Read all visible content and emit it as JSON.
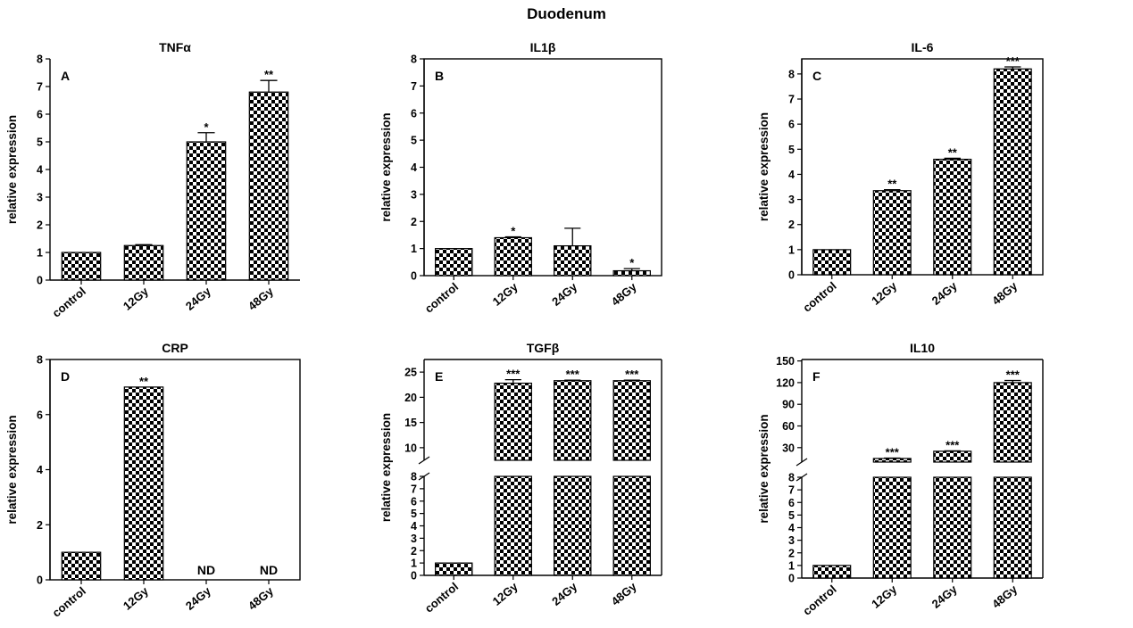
{
  "figure_title": "Duodenum",
  "chart_data": [
    {
      "panel": "A",
      "type": "bar",
      "title": "TNFα",
      "ylabel": "relative expression",
      "categories": [
        "control",
        "12Gy",
        "24Gy",
        "48Gy"
      ],
      "values": [
        1.0,
        1.25,
        5.0,
        6.8
      ],
      "errors": [
        0.0,
        0.03,
        0.33,
        0.42
      ],
      "significance": [
        "",
        "",
        "*",
        "**"
      ],
      "ylim": [
        0,
        8
      ],
      "yticks": [
        0,
        1,
        2,
        3,
        4,
        5,
        6,
        7,
        8
      ],
      "frame": "left"
    },
    {
      "panel": "B",
      "type": "bar",
      "title": "IL1β",
      "ylabel": "relative expression",
      "categories": [
        "control",
        "12Gy",
        "24Gy",
        "48Gy"
      ],
      "values": [
        1.0,
        1.4,
        1.1,
        0.18
      ],
      "errors": [
        0.0,
        0.03,
        0.65,
        0.08
      ],
      "significance": [
        "",
        "*",
        "",
        "*"
      ],
      "ylim": [
        0,
        8
      ],
      "yticks": [
        0,
        1,
        2,
        3,
        4,
        5,
        6,
        7,
        8
      ],
      "frame": "box"
    },
    {
      "panel": "C",
      "type": "bar",
      "title": "IL-6",
      "ylabel": "relative expression",
      "categories": [
        "control",
        "12Gy",
        "24Gy",
        "48Gy"
      ],
      "values": [
        1.0,
        3.35,
        4.6,
        8.2
      ],
      "errors": [
        0.0,
        0.04,
        0.04,
        0.08
      ],
      "significance": [
        "",
        "**",
        "**",
        "***"
      ],
      "ylim": [
        0,
        8.6
      ],
      "yticks": [
        0,
        1,
        2,
        3,
        4,
        5,
        6,
        7,
        8
      ],
      "frame": "box"
    },
    {
      "panel": "D",
      "type": "bar",
      "title": "CRP",
      "ylabel": "relative expression",
      "categories": [
        "control",
        "12Gy",
        "24Gy",
        "48Gy"
      ],
      "values": [
        1.0,
        7.0,
        null,
        null
      ],
      "errors": [
        0.0,
        0.0,
        0.0,
        0.0
      ],
      "significance": [
        "",
        "**",
        "",
        ""
      ],
      "bar_labels": [
        "",
        "",
        "ND",
        "ND"
      ],
      "ylim": [
        0,
        8
      ],
      "yticks": [
        0,
        2,
        4,
        6,
        8
      ],
      "frame": "box"
    },
    {
      "panel": "E",
      "type": "bar",
      "title": "TGFβ",
      "ylabel": "relative expression",
      "categories": [
        "control",
        "12Gy",
        "24Gy",
        "48Gy"
      ],
      "values": [
        1.0,
        22.8,
        23.3,
        23.3
      ],
      "errors": [
        0.0,
        0.7,
        0.1,
        0.1
      ],
      "significance": [
        "",
        "***",
        "***",
        "***"
      ],
      "broken_axis": {
        "lower": {
          "ylim": [
            0,
            8
          ],
          "yticks": [
            0,
            1,
            2,
            3,
            4,
            5,
            6,
            7,
            8
          ]
        },
        "upper": {
          "ylim": [
            7.5,
            27.5
          ],
          "yticks": [
            10,
            15,
            20,
            25
          ]
        }
      },
      "frame": "box"
    },
    {
      "panel": "F",
      "type": "bar",
      "title": "IL10",
      "ylabel": "relative expression",
      "categories": [
        "control",
        "12Gy",
        "24Gy",
        "48Gy"
      ],
      "values": [
        1.0,
        15.0,
        25.0,
        120.0
      ],
      "errors": [
        0.0,
        0.5,
        0.5,
        3.0
      ],
      "significance": [
        "",
        "***",
        "***",
        "***"
      ],
      "broken_axis": {
        "lower": {
          "ylim": [
            0,
            8
          ],
          "yticks": [
            0,
            1,
            2,
            3,
            4,
            5,
            6,
            7,
            8
          ]
        },
        "upper": {
          "ylim": [
            10,
            152
          ],
          "yticks": [
            30,
            60,
            90,
            120,
            150
          ]
        }
      },
      "frame": "box"
    }
  ]
}
